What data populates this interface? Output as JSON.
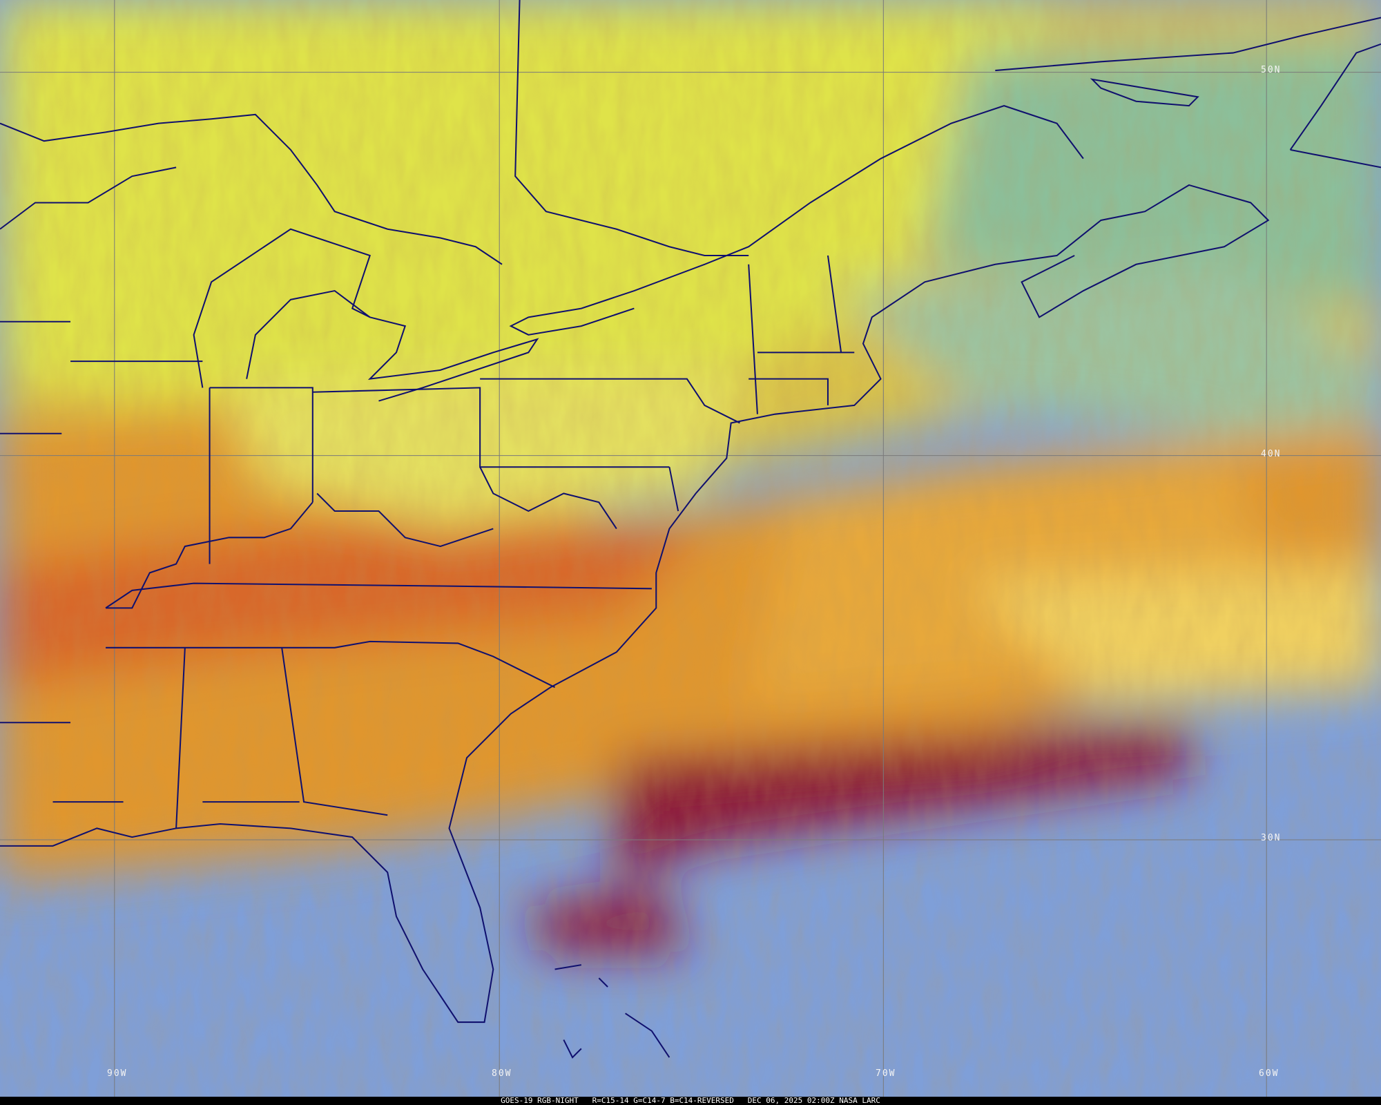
{
  "caption": {
    "satellite": "GOES-19 RGB-NIGHT",
    "channels": "R=C15-14 G=C14-7 B=C14-REVERSED",
    "timestamp": "DEC 06, 2025 02:00Z NASA LARC"
  },
  "grid": {
    "latitudes": [
      "50N",
      "40N",
      "30N"
    ],
    "longitudes": [
      "90W",
      "80W",
      "70W",
      "60W"
    ]
  },
  "colors": {
    "coastline": "#10106e",
    "gridline": "#7a7a7a",
    "high_cloud_yellow": "#dfe34a",
    "mid_cloud_orange": "#e0962e",
    "deep_cloud_maroon": "#8c1838",
    "clear_ocean_blue": "#7f9fd8",
    "low_cloud_teal": "#8cbf9a"
  }
}
